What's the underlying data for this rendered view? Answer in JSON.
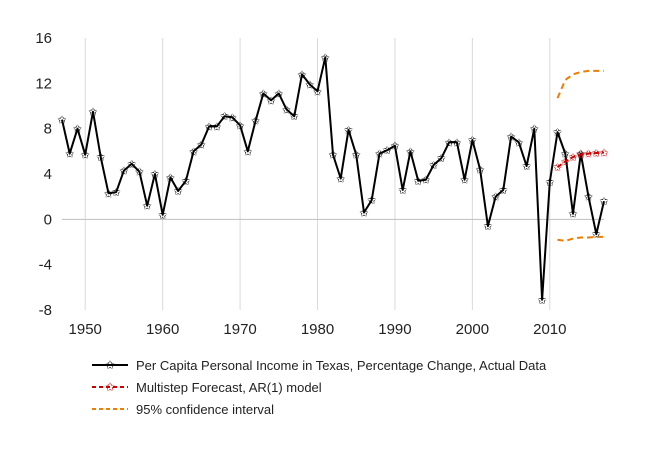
{
  "chart_data": {
    "type": "line",
    "title": "",
    "xlabel": "",
    "ylabel": "",
    "xlim": [
      1947,
      2017
    ],
    "ylim": [
      -8,
      16
    ],
    "x_ticks": [
      1950,
      1960,
      1970,
      1980,
      1990,
      2000,
      2010
    ],
    "y_ticks": [
      16,
      12,
      8,
      4,
      0,
      -4,
      -8
    ],
    "grid": "vertical gridlines only, light gray; zero line",
    "legend_position": "bottom",
    "colors": {
      "actual": "#000000",
      "forecast": "#cc0000",
      "confidence": "#ee7d00",
      "grid": "#d9d9d9"
    },
    "series": [
      {
        "name": "Per Capita Personal Income in Texas, Percentage Change, Actual Data",
        "style": "solid black line with star markers",
        "x": [
          1947,
          1948,
          1949,
          1950,
          1951,
          1952,
          1953,
          1954,
          1955,
          1956,
          1957,
          1958,
          1959,
          1960,
          1961,
          1962,
          1963,
          1964,
          1965,
          1966,
          1967,
          1968,
          1969,
          1970,
          1971,
          1972,
          1973,
          1974,
          1975,
          1976,
          1977,
          1978,
          1979,
          1980,
          1981,
          1982,
          1983,
          1984,
          1985,
          1986,
          1987,
          1988,
          1989,
          1990,
          1991,
          1992,
          1993,
          1994,
          1995,
          1996,
          1997,
          1998,
          1999,
          2000,
          2001,
          2002,
          2003,
          2004,
          2005,
          2006,
          2007,
          2008,
          2009,
          2010,
          2011,
          2012,
          2013,
          2014,
          2015,
          2016,
          2017
        ],
        "y": [
          8.8,
          5.8,
          8.0,
          5.7,
          9.5,
          5.5,
          2.3,
          2.4,
          4.3,
          4.9,
          4.2,
          1.2,
          4.0,
          0.4,
          3.7,
          2.5,
          3.4,
          6.0,
          6.6,
          8.2,
          8.2,
          9.1,
          9.0,
          8.3,
          6.0,
          8.7,
          11.1,
          10.5,
          11.1,
          9.7,
          9.1,
          12.8,
          11.9,
          11.3,
          14.3,
          5.7,
          3.6,
          7.9,
          5.7,
          0.6,
          1.7,
          5.8,
          6.1,
          6.5,
          2.6,
          6.0,
          3.4,
          3.5,
          4.8,
          5.4,
          6.8,
          6.8,
          3.5,
          7.0,
          4.4,
          -0.6,
          2.0,
          2.6,
          7.3,
          6.8,
          4.7,
          8.0,
          -7.1,
          3.3,
          7.7,
          5.8,
          0.5,
          5.8,
          2.0,
          -1.3,
          1.6
        ]
      },
      {
        "name": "Multistep Forecast, AR(1) model",
        "style": "dashed red line with star markers",
        "x": [
          2011,
          2012,
          2013,
          2014,
          2015,
          2016,
          2017
        ],
        "y": [
          4.6,
          5.1,
          5.5,
          5.7,
          5.8,
          5.85,
          5.9
        ]
      },
      {
        "name": "95% confidence interval",
        "style": "dashed orange line (upper bound)",
        "x": [
          2011,
          2012,
          2013,
          2014,
          2015,
          2016,
          2017
        ],
        "y": [
          10.7,
          12.3,
          12.8,
          13.0,
          13.1,
          13.1,
          13.1
        ]
      },
      {
        "name": "95% confidence interval",
        "style": "dashed orange line (lower bound)",
        "x": [
          2011,
          2012,
          2013,
          2014,
          2015,
          2016,
          2017
        ],
        "y": [
          -1.8,
          -1.9,
          -1.7,
          -1.6,
          -1.6,
          -1.55,
          -1.55
        ]
      }
    ],
    "legend": [
      {
        "label": "Per Capita Personal Income in Texas, Percentage Change, Actual Data",
        "color": "#000000",
        "dash": "solid",
        "marker": "star"
      },
      {
        "label": "Multistep Forecast, AR(1) model",
        "color": "#cc0000",
        "dash": "dashed",
        "marker": "star"
      },
      {
        "label": "95% confidence interval",
        "color": "#ee7d00",
        "dash": "dashed",
        "marker": "none"
      }
    ]
  }
}
